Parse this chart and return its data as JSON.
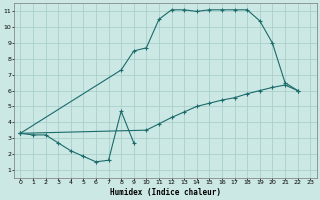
{
  "xlabel": "Humidex (Indice chaleur)",
  "bg_color": "#cce8e4",
  "grid_color": "#aacfcb",
  "line_color": "#1a6b6b",
  "xlim": [
    -0.5,
    23.5
  ],
  "ylim": [
    0.5,
    11.5
  ],
  "xticks": [
    0,
    1,
    2,
    3,
    4,
    5,
    6,
    7,
    8,
    9,
    10,
    11,
    12,
    13,
    14,
    15,
    16,
    17,
    18,
    19,
    20,
    21,
    22,
    23
  ],
  "yticks": [
    1,
    2,
    3,
    4,
    5,
    6,
    7,
    8,
    9,
    10,
    11
  ],
  "line1_x": [
    0,
    1,
    2,
    3,
    4,
    5,
    6,
    7,
    8,
    9
  ],
  "line1_y": [
    3.3,
    3.2,
    3.2,
    2.7,
    2.2,
    1.85,
    1.5,
    1.6,
    4.7,
    2.7
  ],
  "line2_x": [
    0,
    8,
    9,
    10,
    11,
    12,
    13,
    14,
    15,
    16,
    17,
    18,
    19,
    20,
    21,
    22
  ],
  "line2_y": [
    3.3,
    7.3,
    8.5,
    8.7,
    10.5,
    11.1,
    11.1,
    11.0,
    11.1,
    11.1,
    11.1,
    11.1,
    10.4,
    9.0,
    6.5,
    6.0
  ],
  "line3_x": [
    0,
    10,
    11,
    12,
    13,
    14,
    15,
    16,
    17,
    18,
    19,
    20,
    21,
    22
  ],
  "line3_y": [
    3.3,
    3.5,
    3.9,
    4.3,
    4.65,
    5.0,
    5.2,
    5.4,
    5.55,
    5.8,
    6.0,
    6.2,
    6.35,
    6.0
  ]
}
